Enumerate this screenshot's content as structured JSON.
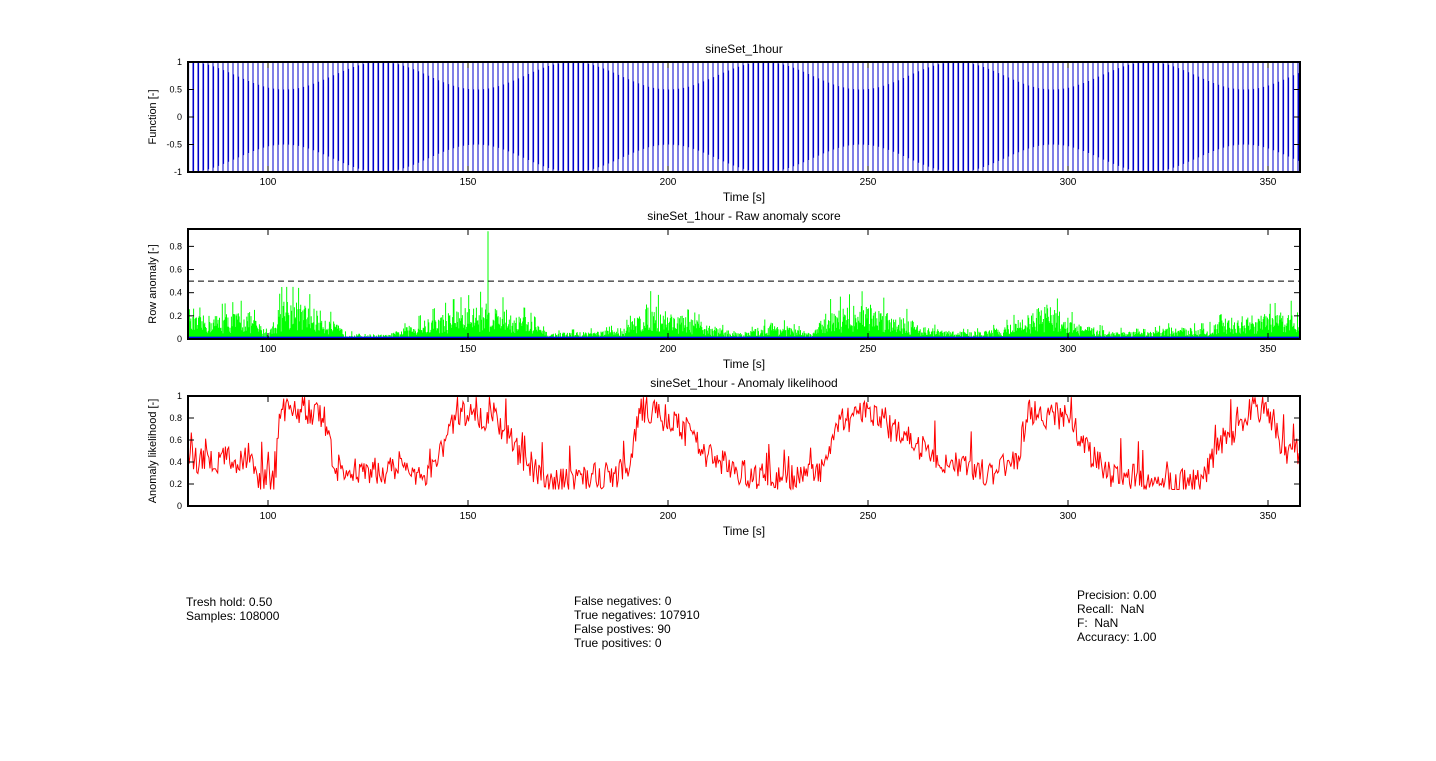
{
  "figure": {
    "colors": {
      "function": "#0000cc",
      "raw": "#00ff00",
      "raw_base": "#0000ff",
      "likelihood": "#ff0000",
      "threshold": "#000000"
    }
  },
  "chart_data": [
    {
      "type": "line",
      "title": "sineSet_1hour",
      "xlabel": "Time [s]",
      "ylabel": "Function [-]",
      "xlim": [
        80,
        358
      ],
      "ylim": [
        -1,
        1
      ],
      "xticks": [
        100,
        150,
        200,
        250,
        300,
        350
      ],
      "yticks": [
        -1,
        -0.5,
        0,
        0.5,
        1
      ],
      "ytick_labels": [
        "-1",
        "-0.5",
        "0",
        "0.5",
        "1"
      ],
      "grid": false,
      "series": [
        {
          "signal": "sine",
          "amplitude_range": [
            0.5,
            1.0
          ],
          "amplitude_period_s": 48,
          "color": "#0000cc"
        }
      ]
    },
    {
      "type": "line",
      "title": "sineSet_1hour - Raw anomaly score",
      "xlabel": "Time [s]",
      "ylabel": "Row anomaly [-]",
      "xlim": [
        80,
        358
      ],
      "ylim": [
        0,
        0.95
      ],
      "xticks": [
        100,
        150,
        200,
        250,
        300,
        350
      ],
      "yticks": [
        0,
        0.2,
        0.4,
        0.6,
        0.8
      ],
      "ytick_labels": [
        "0",
        "0.2",
        "0.4",
        "0.6",
        "0.8"
      ],
      "grid": false,
      "threshold": 0.5,
      "peak": {
        "x": 155,
        "y": 0.93
      },
      "series": [
        {
          "levels": [
            [
              80,
              0.15
            ],
            [
              95,
              0.2
            ],
            [
              100,
              0.04
            ],
            [
              104,
              0.3
            ],
            [
              113,
              0.2
            ],
            [
              120,
              0.04
            ],
            [
              130,
              0.03
            ],
            [
              136,
              0.1
            ],
            [
              146,
              0.2
            ],
            [
              155,
              0.25
            ],
            [
              165,
              0.15
            ],
            [
              170,
              0.04
            ],
            [
              185,
              0.06
            ],
            [
              190,
              0.1
            ],
            [
              195,
              0.25
            ],
            [
              205,
              0.15
            ],
            [
              215,
              0.06
            ],
            [
              220,
              0.05
            ],
            [
              226,
              0.12
            ],
            [
              236,
              0.04
            ],
            [
              240,
              0.2
            ],
            [
              250,
              0.25
            ],
            [
              260,
              0.15
            ],
            [
              265,
              0.08
            ],
            [
              270,
              0.06
            ],
            [
              275,
              0.05
            ],
            [
              280,
              0.06
            ],
            [
              285,
              0.1
            ],
            [
              295,
              0.25
            ],
            [
              303,
              0.1
            ],
            [
              310,
              0.06
            ],
            [
              320,
              0.05
            ],
            [
              325,
              0.08
            ],
            [
              335,
              0.08
            ],
            [
              340,
              0.15
            ],
            [
              358,
              0.2
            ]
          ],
          "color": "#00ff00"
        }
      ]
    },
    {
      "type": "line",
      "title": "sineSet_1hour - Anomaly likelihood",
      "xlabel": "Time [s]",
      "ylabel": "Anomaly likelihood [-]",
      "xlim": [
        80,
        358
      ],
      "ylim": [
        0,
        1
      ],
      "xticks": [
        100,
        150,
        200,
        250,
        300,
        350
      ],
      "yticks": [
        0,
        0.2,
        0.4,
        0.6,
        0.8,
        1
      ],
      "ytick_labels": [
        "0",
        "0.2",
        "0.4",
        "0.6",
        "0.8",
        "1"
      ],
      "grid": false,
      "series": [
        {
          "levels": [
            [
              80,
              0.42
            ],
            [
              96,
              0.42
            ],
            [
              97,
              0.25
            ],
            [
              102,
              0.25
            ],
            [
              103,
              0.9
            ],
            [
              113,
              0.85
            ],
            [
              117,
              0.35
            ],
            [
              140,
              0.3
            ],
            [
              148,
              0.85
            ],
            [
              158,
              0.75
            ],
            [
              165,
              0.35
            ],
            [
              172,
              0.22
            ],
            [
              180,
              0.28
            ],
            [
              190,
              0.28
            ],
            [
              193,
              0.9
            ],
            [
              202,
              0.75
            ],
            [
              210,
              0.45
            ],
            [
              220,
              0.28
            ],
            [
              230,
              0.25
            ],
            [
              238,
              0.3
            ],
            [
              242,
              0.75
            ],
            [
              250,
              0.85
            ],
            [
              260,
              0.6
            ],
            [
              270,
              0.4
            ],
            [
              280,
              0.3
            ],
            [
              287,
              0.4
            ],
            [
              290,
              0.85
            ],
            [
              300,
              0.8
            ],
            [
              305,
              0.5
            ],
            [
              310,
              0.3
            ],
            [
              320,
              0.25
            ],
            [
              333,
              0.2
            ],
            [
              337,
              0.5
            ],
            [
              345,
              0.85
            ],
            [
              350,
              0.9
            ],
            [
              354,
              0.5
            ],
            [
              358,
              0.5
            ]
          ],
          "color": "#ff0000"
        }
      ]
    }
  ],
  "stats": {
    "left": [
      "Tresh hold: 0.50",
      "Samples: 108000"
    ],
    "middle": [
      "False negatives: 0",
      "True negatives: 107910",
      "False postives: 90",
      "True positives: 0"
    ],
    "right": [
      "Precision: 0.00",
      "Recall:  NaN",
      "F:  NaN",
      "Accuracy: 1.00"
    ]
  }
}
